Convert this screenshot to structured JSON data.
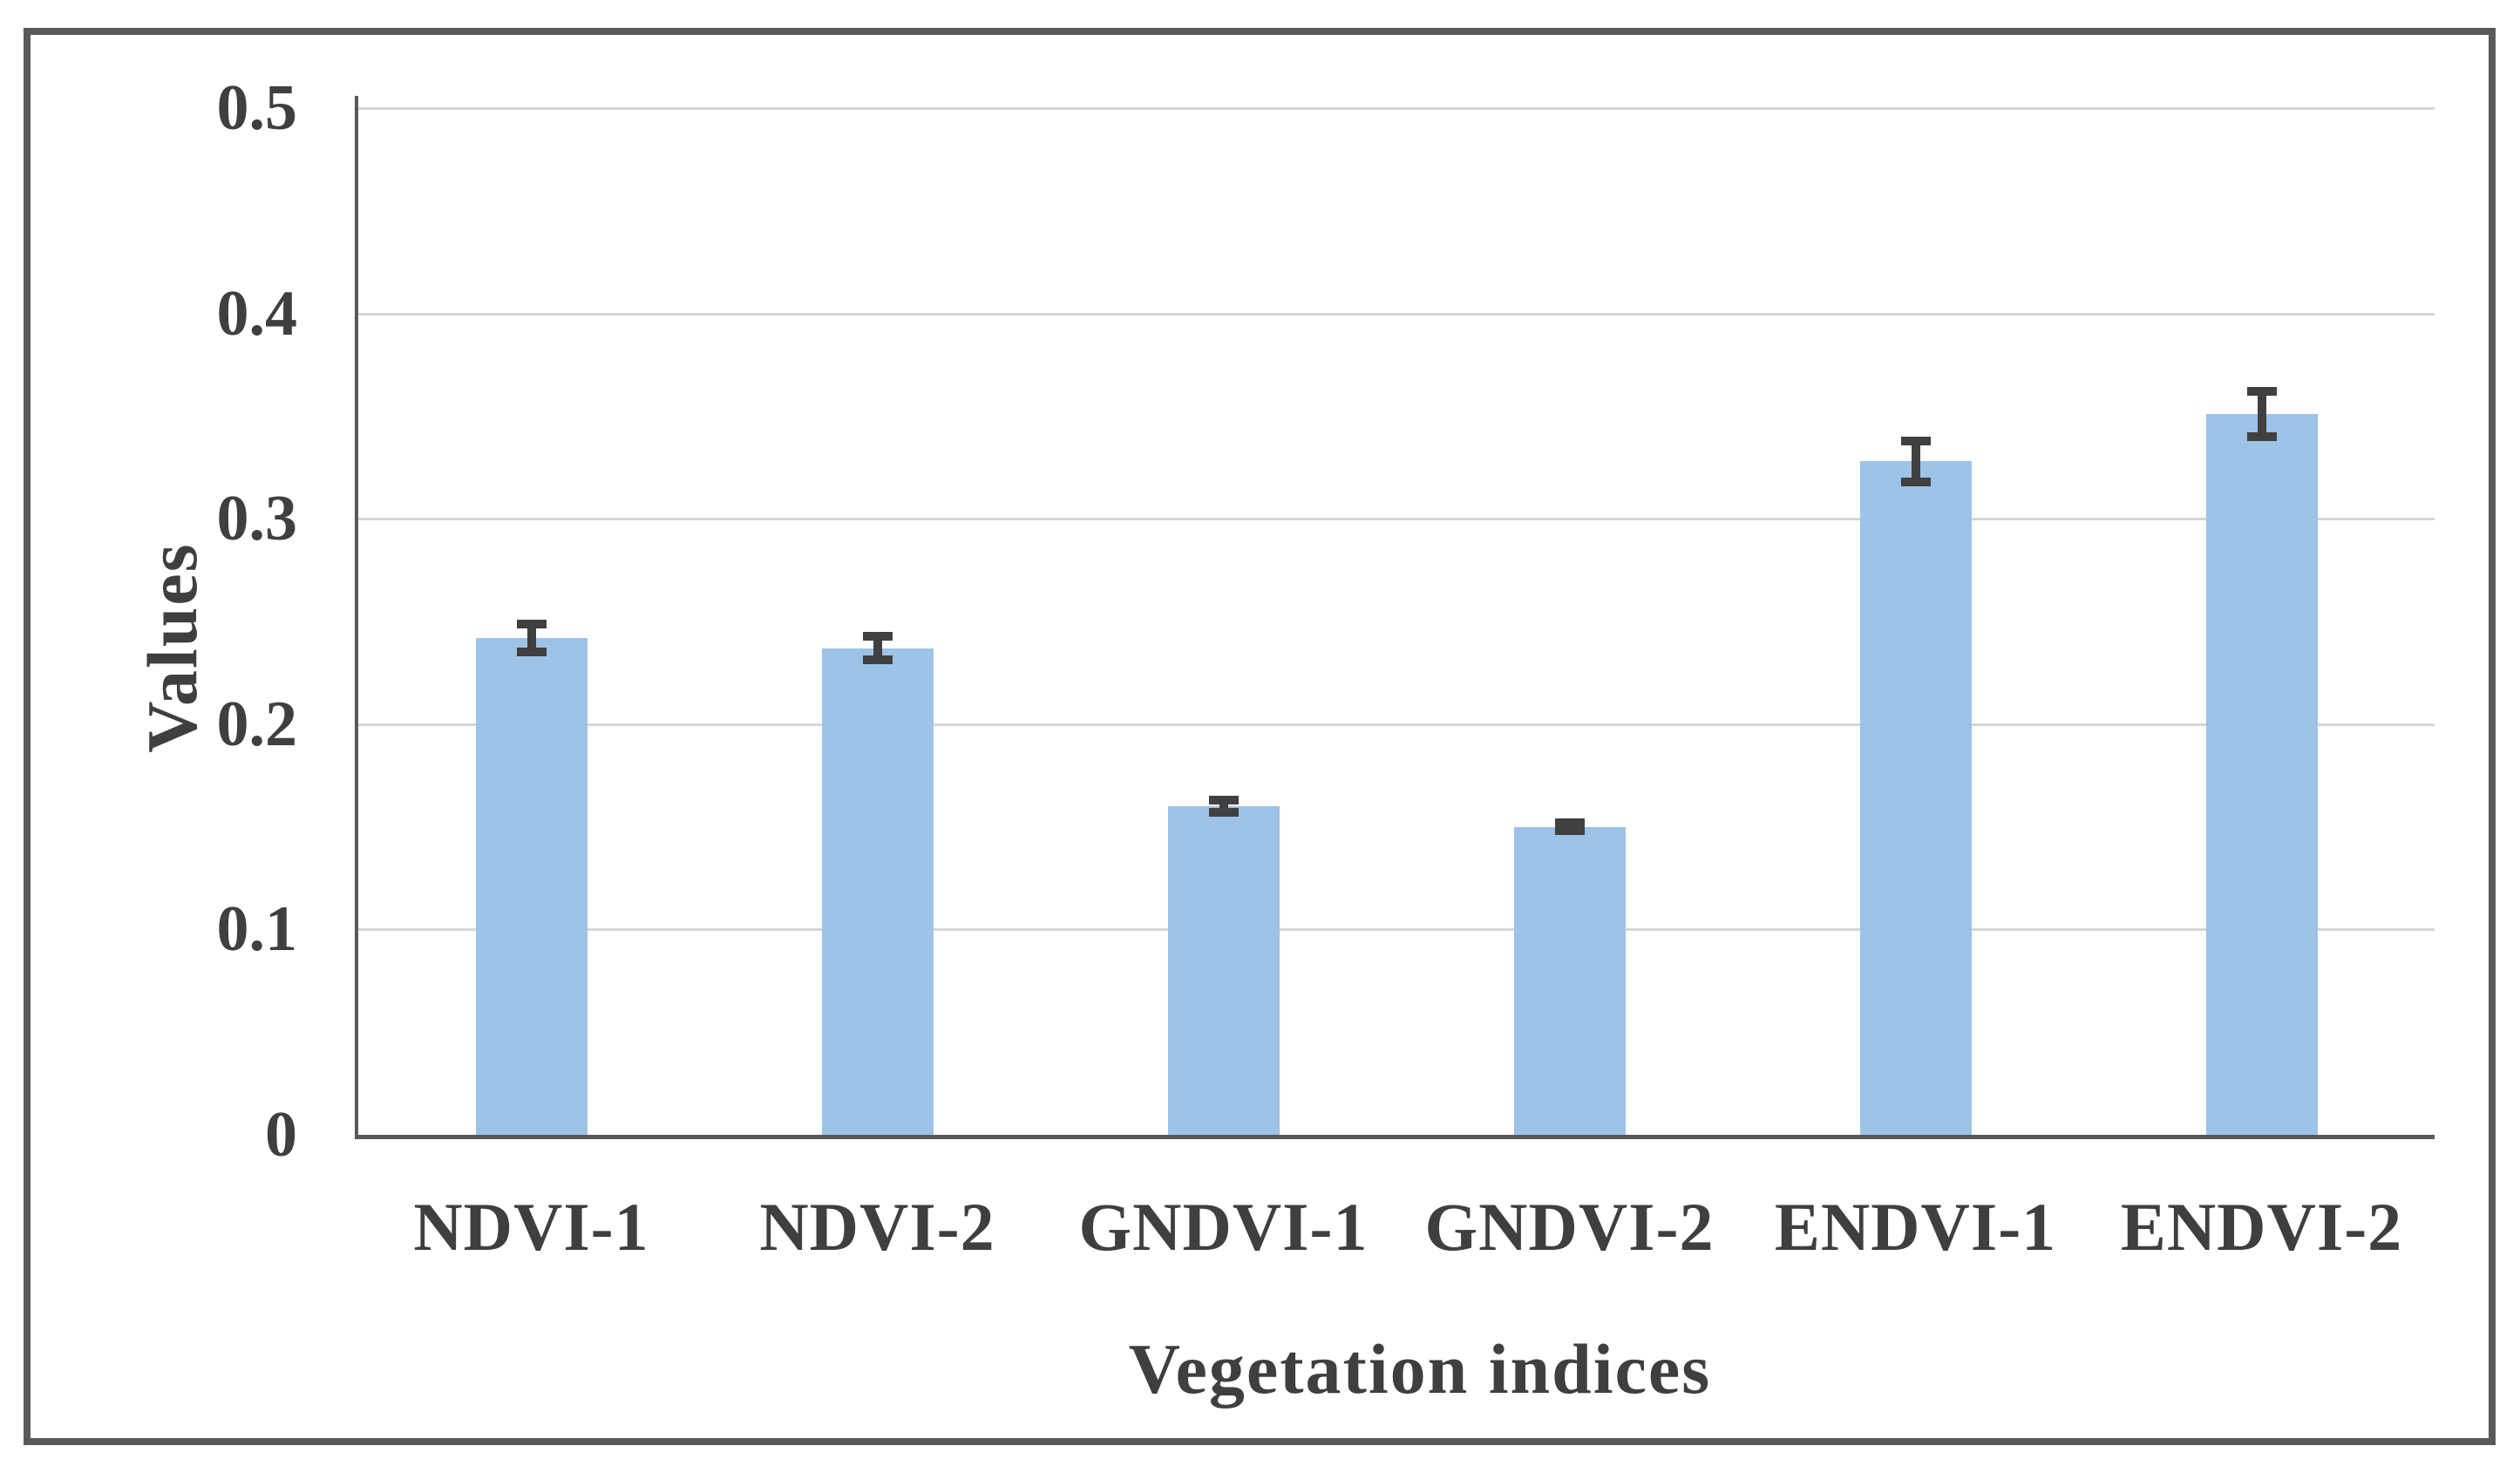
{
  "figure": {
    "background": "#ffffff",
    "border_color": "#595959"
  },
  "chart_data": {
    "type": "bar",
    "title": "",
    "categories": [
      "NDVI-1",
      "NDVI-2",
      "GNDVI-1",
      "GNDVI-2",
      "ENDVI-1",
      "ENDVI-2"
    ],
    "values": [
      0.242,
      0.237,
      0.16,
      0.15,
      0.328,
      0.351
    ],
    "error_bars": [
      0.009,
      0.008,
      0.005,
      0.004,
      0.012,
      0.013
    ],
    "xlabel": "Vegetation indices",
    "ylabel": "Values",
    "ylim": [
      0,
      0.5
    ],
    "ytick_step": 0.1,
    "ytick_labels": [
      "0",
      "0.1",
      "0.2",
      "0.3",
      "0.4",
      "0.5"
    ],
    "grid": true,
    "legend": "none",
    "colors": {
      "bar_fill": "#9DC3E6",
      "error_bar": "#404040",
      "gridline": "#D6D6D6",
      "axis_line": "#595959",
      "text": "#3F3F3F",
      "frame": "#595959"
    }
  }
}
